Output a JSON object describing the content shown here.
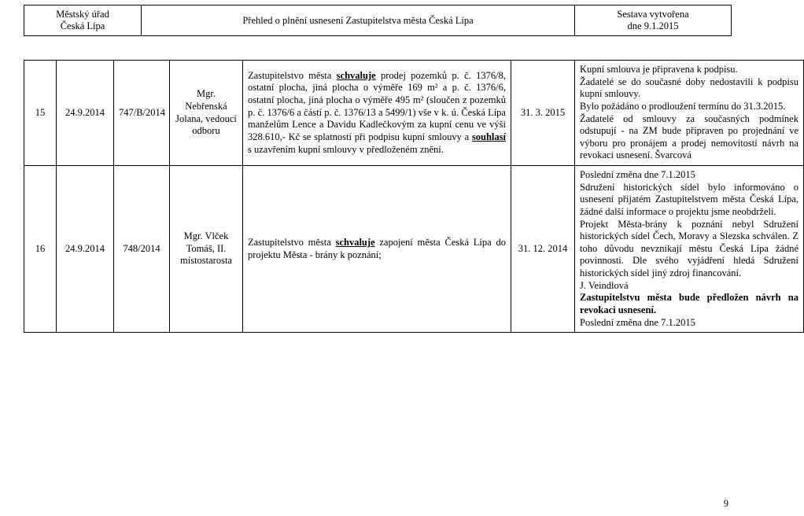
{
  "header": {
    "left_line1": "Městský úřad",
    "left_line2": "Česká Lípa",
    "center": "Přehled o plnění usnesení Zastupitelstva města Česká Lípa",
    "right_line1": "Sestava vytvořena",
    "right_line2": "dne 9.1.2015"
  },
  "rows": [
    {
      "idx": "15",
      "date": "24.9.2014",
      "ref": "747/B/2014",
      "responsible": "Mgr. Nebřenská Jolana, vedoucí odboru",
      "body_plain_1": "Zastupitelstvo města ",
      "body_bu_1": "schvaluje",
      "body_plain_2": " prodej pozemků p. č. 1376/8, ostatní plocha, jiná plocha o výměře 169 m² a p. č. 1376/6, ostatní plocha, jiná plocha o výměře 495 m² (sloučen z pozemků p. č. 1376/6 a částí p. č. 1376/13 a 5499/1) vše v k. ú. Česká Lípa manželům Lence a Davidu Kadlečkovým za kupní cenu ve výši 328.610,- Kč se splatností při podpisu kupní smlouvy a ",
      "body_bu_2": "souhlasí",
      "body_plain_3": " s uzavřením kupní smlouvy v předloženém znění.",
      "due": "31. 3. 2015",
      "status_plain": "Kupní smlouva je připravena k podpisu.\nŽadatelé se do současné doby nedostavili k podpisu kupní smlouvy.\nBylo požádáno o prodloužení termínu do 31.3.2015.\nŽadatelé od smlouvy za současných podmínek odstupují - na ZM bude připraven po projednání ve výboru pro pronájem a prodej nemovitostí návrh na revokaci usnesení. Švarcová"
    },
    {
      "idx": "16",
      "date": "24.9.2014",
      "ref": "748/2014",
      "responsible": "Mgr. Vlček Tomáš, II. místostarosta",
      "body_plain_1": "Zastupitelstvo města ",
      "body_bu_1": "schvaluje",
      "body_plain_2": " zapojení města Česká Lípa do projektu Města - brány k poznání;",
      "body_bu_2": "",
      "body_plain_3": "",
      "due": "31. 12. 2014",
      "status_pre": "Poslední změna dne 7.1.2015\nSdružení historických sídel bylo informováno o usnesení přijatém Zastupitelstvem města Česká Lípa, žádné další informace o projektu jsme neobdrželi.\nProjekt Města-brány k poznání nebyl Sdružení historických sídel Čech, Moravy a Slezska schválen. Z toho důvodu nevznikají městu Česká Lípa žádné povinnosti. Dle svého vyjádření hledá Sdružení historických sídel jiný zdroj financování.\nJ. Veindlová",
      "status_bold": "Zastupitelstvu města bude předložen návrh na revokaci usnesení.",
      "status_post": "Poslední změna dne 7.1.2015"
    }
  ],
  "page_number": "9"
}
